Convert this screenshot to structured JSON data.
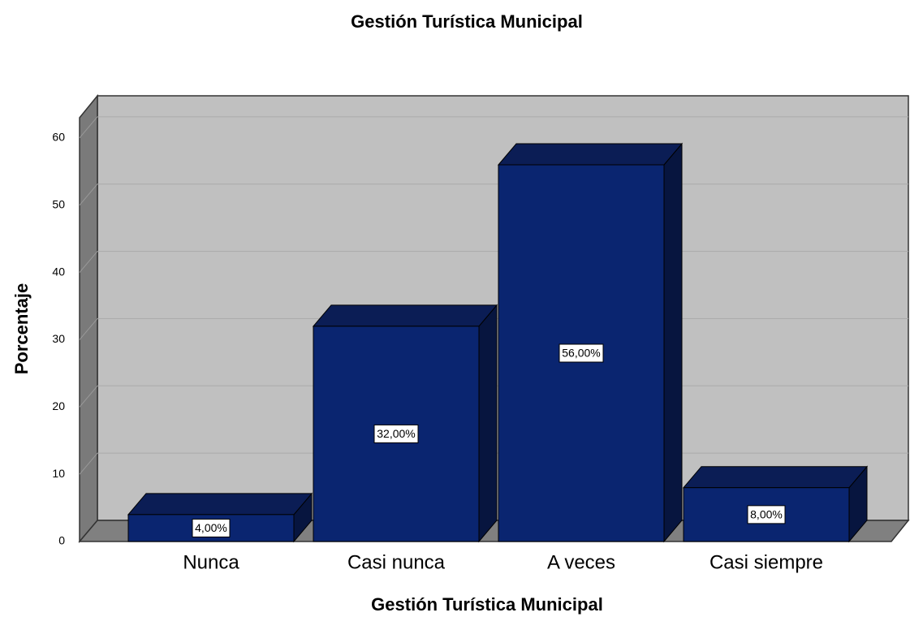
{
  "chart_data": {
    "type": "bar3d",
    "title": "Gestión Turística Municipal",
    "x_label": "Gestión Turística Municipal",
    "y_label": "Porcentaje",
    "categories": [
      "Nunca",
      "Casi nunca",
      "A veces",
      "Casi siempre"
    ],
    "values": [
      4,
      32,
      56,
      8
    ],
    "value_labels": [
      "4,00%",
      "32,00%",
      "56,00%",
      "8,00%"
    ],
    "color": "#0a2570",
    "ylim": [
      0,
      63
    ],
    "yticks": [
      0,
      10,
      20,
      30,
      40,
      50,
      60
    ],
    "grid": true
  }
}
